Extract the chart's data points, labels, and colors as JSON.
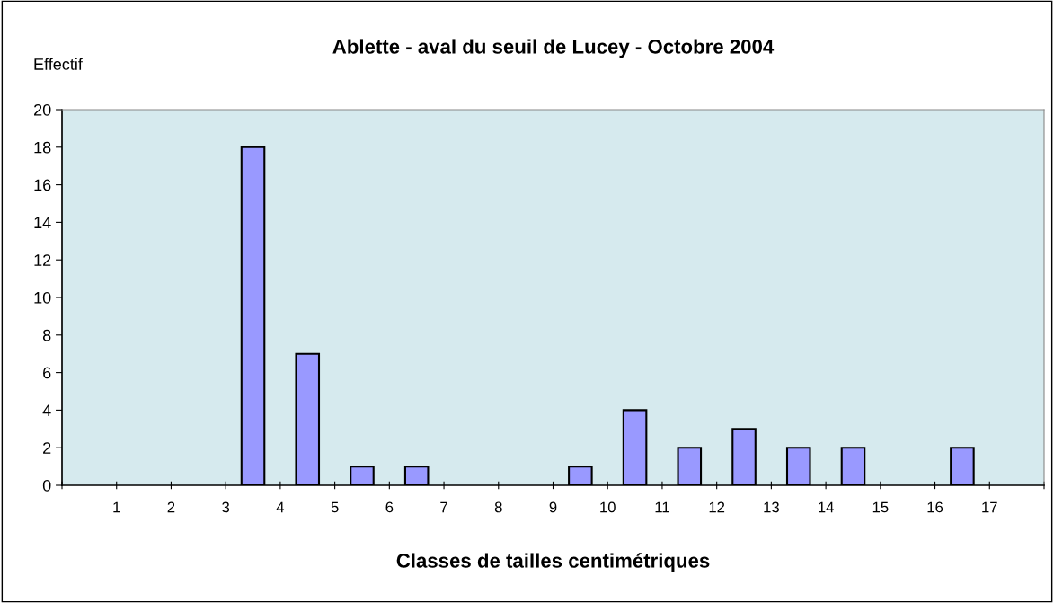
{
  "chart_data": {
    "type": "histogram",
    "title": "Ablette - aval du seuil de Lucey - Octobre 2004",
    "xlabel": "Classes de tailles centimétriques",
    "ylabel": "Effectif",
    "bins": [
      0,
      1,
      2,
      3,
      4,
      5,
      6,
      7,
      8,
      9,
      10,
      11,
      12,
      13,
      14,
      15,
      16,
      17,
      18
    ],
    "values": [
      0,
      0,
      0,
      18,
      7,
      1,
      1,
      0,
      0,
      1,
      4,
      2,
      3,
      2,
      2,
      0,
      2,
      0
    ],
    "color": "#9999ff",
    "xlim": [
      0,
      18
    ],
    "xticks": [
      {
        "value": 0,
        "label": null
      },
      1,
      2,
      3,
      4,
      5,
      6,
      7,
      8,
      9,
      10,
      11,
      12,
      13,
      14,
      15,
      16,
      17,
      {
        "value": 18,
        "label": null
      }
    ],
    "ylim": [
      0,
      20
    ],
    "yticks": [
      0,
      2,
      4,
      6,
      8,
      10,
      12,
      14,
      16,
      18,
      20
    ],
    "grid": false,
    "legend": false
  }
}
